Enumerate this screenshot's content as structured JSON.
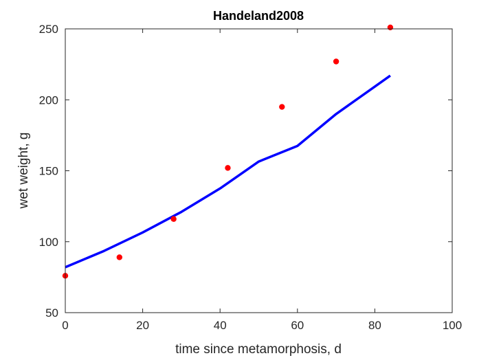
{
  "chart_data": {
    "type": "scatter",
    "title": "Handeland2008",
    "xlabel": "time since metamorphosis, d",
    "ylabel": "wet weight, g",
    "xlim": [
      0,
      100
    ],
    "ylim": [
      50,
      250
    ],
    "xticks": [
      0,
      20,
      40,
      60,
      80,
      100
    ],
    "yticks": [
      50,
      100,
      150,
      200,
      250
    ],
    "grid": false,
    "series": [
      {
        "kind": "points",
        "color": "#ff0000",
        "x": [
          0,
          14,
          28,
          42,
          56,
          70,
          84
        ],
        "y": [
          76,
          89,
          116,
          152,
          195,
          227,
          251
        ]
      },
      {
        "kind": "line",
        "color": "#0000ff",
        "x": [
          0,
          10,
          20,
          30,
          40,
          50,
          60,
          70,
          84
        ],
        "y": [
          82,
          93.5,
          106.5,
          121,
          137.5,
          156.5,
          167.5,
          190,
          217
        ]
      }
    ]
  }
}
